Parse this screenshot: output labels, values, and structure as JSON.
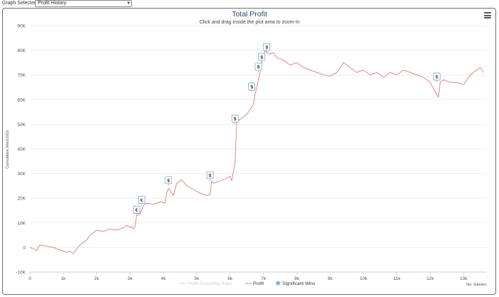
{
  "controls": {
    "graph_selected_label": "Graph Selected:",
    "graph_selected_value": "Profit History",
    "menu_icon": "hamburger-menu-icon"
  },
  "chart_data": {
    "type": "line",
    "title": "Total Profit",
    "subtitle": "Click and drag inside the plot area to zoom-in",
    "ylabel": "Cumulative Win(USD)",
    "xlabel": "No. Games",
    "xlim": [
      0,
      13700
    ],
    "ylim": [
      -10000,
      90000
    ],
    "x_ticks": [
      0,
      1000,
      2000,
      3000,
      4000,
      5000,
      6000,
      7000,
      8000,
      9000,
      10000,
      11000,
      12000,
      13000
    ],
    "x_tick_labels": [
      "0",
      "1k",
      "2k",
      "3k",
      "4k",
      "5k",
      "6k",
      "7k",
      "8k",
      "9k",
      "10k",
      "11k",
      "12k",
      "13k"
    ],
    "y_ticks": [
      -10000,
      0,
      10000,
      20000,
      30000,
      40000,
      50000,
      60000,
      70000,
      80000,
      90000
    ],
    "y_tick_labels": [
      "-10K",
      "0",
      "10K",
      "20K",
      "30K",
      "40K",
      "50K",
      "60K",
      "70K",
      "80K",
      "90K"
    ],
    "colors": {
      "profit": "#e07b7b",
      "excl_rake": "#d0d0d0",
      "wins": "#7cb5ec"
    },
    "series": [
      {
        "name": "Profit",
        "x": [
          0,
          100,
          200,
          300,
          500,
          700,
          900,
          1100,
          1200,
          1300,
          1500,
          1700,
          1800,
          2000,
          2200,
          2400,
          2600,
          2800,
          2900,
          3000,
          3050,
          3100,
          3150,
          3200,
          3300,
          3400,
          3500,
          3700,
          3900,
          4050,
          4100,
          4150,
          4300,
          4400,
          4550,
          4700,
          4900,
          5100,
          5300,
          5400,
          5450,
          5500,
          5700,
          5900,
          6000,
          6050,
          6100,
          6150,
          6200,
          6300,
          6500,
          6600,
          6700,
          6750,
          6800,
          6850,
          6900,
          6950,
          7000,
          7050,
          7100,
          7200,
          7300,
          7400,
          7600,
          7800,
          8000,
          8200,
          8400,
          8600,
          8800,
          9000,
          9200,
          9400,
          9600,
          9800,
          10000,
          10200,
          10400,
          10600,
          10800,
          11000,
          11200,
          11400,
          11600,
          11800,
          12000,
          12150,
          12200,
          12250,
          12300,
          12400,
          12600,
          12800,
          13000,
          13200,
          13400,
          13500,
          13600
        ],
        "values": [
          0,
          -500,
          -1200,
          1000,
          500,
          0,
          -1000,
          -2000,
          -1500,
          -2500,
          1000,
          3000,
          5000,
          7000,
          6500,
          7500,
          7000,
          8000,
          9000,
          8000,
          8500,
          7500,
          8500,
          13000,
          13500,
          17000,
          18000,
          17500,
          18500,
          18000,
          22000,
          24000,
          21000,
          26000,
          27500,
          25000,
          23500,
          22000,
          21000,
          21500,
          27000,
          26000,
          27000,
          28000,
          29000,
          27000,
          31000,
          34000,
          51000,
          52000,
          54000,
          56000,
          58000,
          62000,
          65000,
          68000,
          71000,
          75000,
          78000,
          80000,
          79000,
          78500,
          79000,
          77000,
          76000,
          74000,
          75000,
          73000,
          72000,
          71000,
          70000,
          69500,
          71000,
          75000,
          73000,
          71000,
          72000,
          70000,
          71000,
          69000,
          71000,
          70000,
          72000,
          71000,
          70000,
          69000,
          67000,
          63000,
          62000,
          61000,
          67000,
          68000,
          67000,
          67000,
          66000,
          70000,
          72000,
          73000,
          71000
        ]
      },
      {
        "name": "Profit Excluding Rake",
        "hidden": true
      },
      {
        "name": "Significant Wins",
        "points": [
          {
            "x": 3200,
            "y": 13000,
            "label": "€"
          },
          {
            "x": 3350,
            "y": 17000,
            "label": "€"
          },
          {
            "x": 4150,
            "y": 25000,
            "label": "$"
          },
          {
            "x": 5400,
            "y": 27000,
            "label": "$"
          },
          {
            "x": 6150,
            "y": 50000,
            "label": "$"
          },
          {
            "x": 6650,
            "y": 63000,
            "label": "$"
          },
          {
            "x": 6850,
            "y": 71000,
            "label": "$"
          },
          {
            "x": 6950,
            "y": 75000,
            "label": "$"
          },
          {
            "x": 7100,
            "y": 79000,
            "label": "$"
          },
          {
            "x": 12200,
            "y": 67000,
            "label": "$"
          }
        ]
      }
    ],
    "legend": {
      "position": "bottom-center",
      "items": [
        {
          "label": "Profit Excluding Rake",
          "state": "hidden"
        },
        {
          "label": "Profit",
          "state": "visible"
        },
        {
          "label": "Significant Wins",
          "state": "visible"
        }
      ]
    }
  }
}
